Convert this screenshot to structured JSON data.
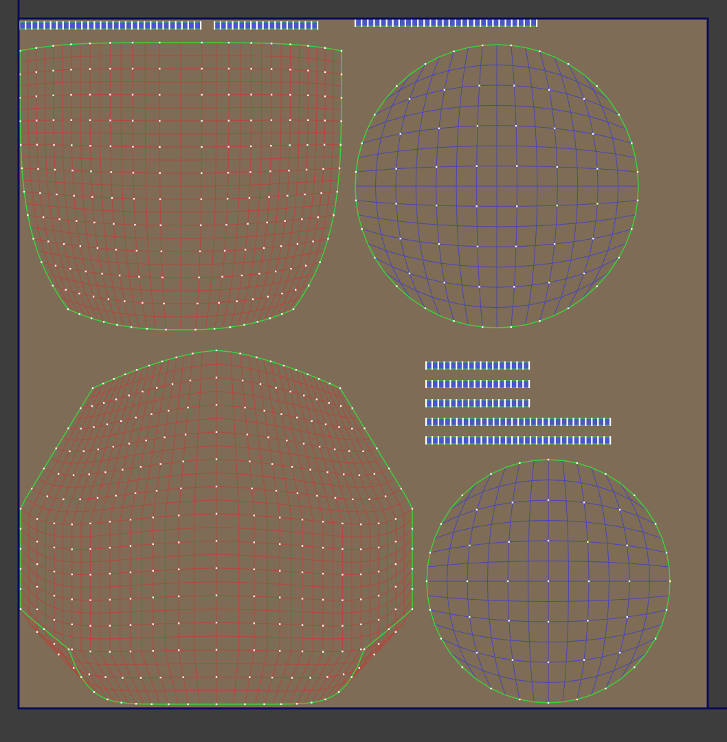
{
  "editor": {
    "view": "uv-texture-editor",
    "colors": {
      "background": "#3d3d3d",
      "texture": "#7e6c56",
      "frame": "#0a0a5a",
      "border_edge": "#3cd23c",
      "red_shell_edge": "#b4463c",
      "blue_shell_edge": "#4646b4",
      "vertex": "#ffffff",
      "strip_fill": "#4a56c8"
    },
    "shells": [
      {
        "name": "upper-body-shell",
        "color": "red"
      },
      {
        "name": "lower-body-shell",
        "color": "red"
      },
      {
        "name": "large-disc-shell",
        "color": "blue"
      },
      {
        "name": "small-disc-shell",
        "color": "blue"
      },
      {
        "name": "strip-shells",
        "color": "blue"
      }
    ]
  }
}
